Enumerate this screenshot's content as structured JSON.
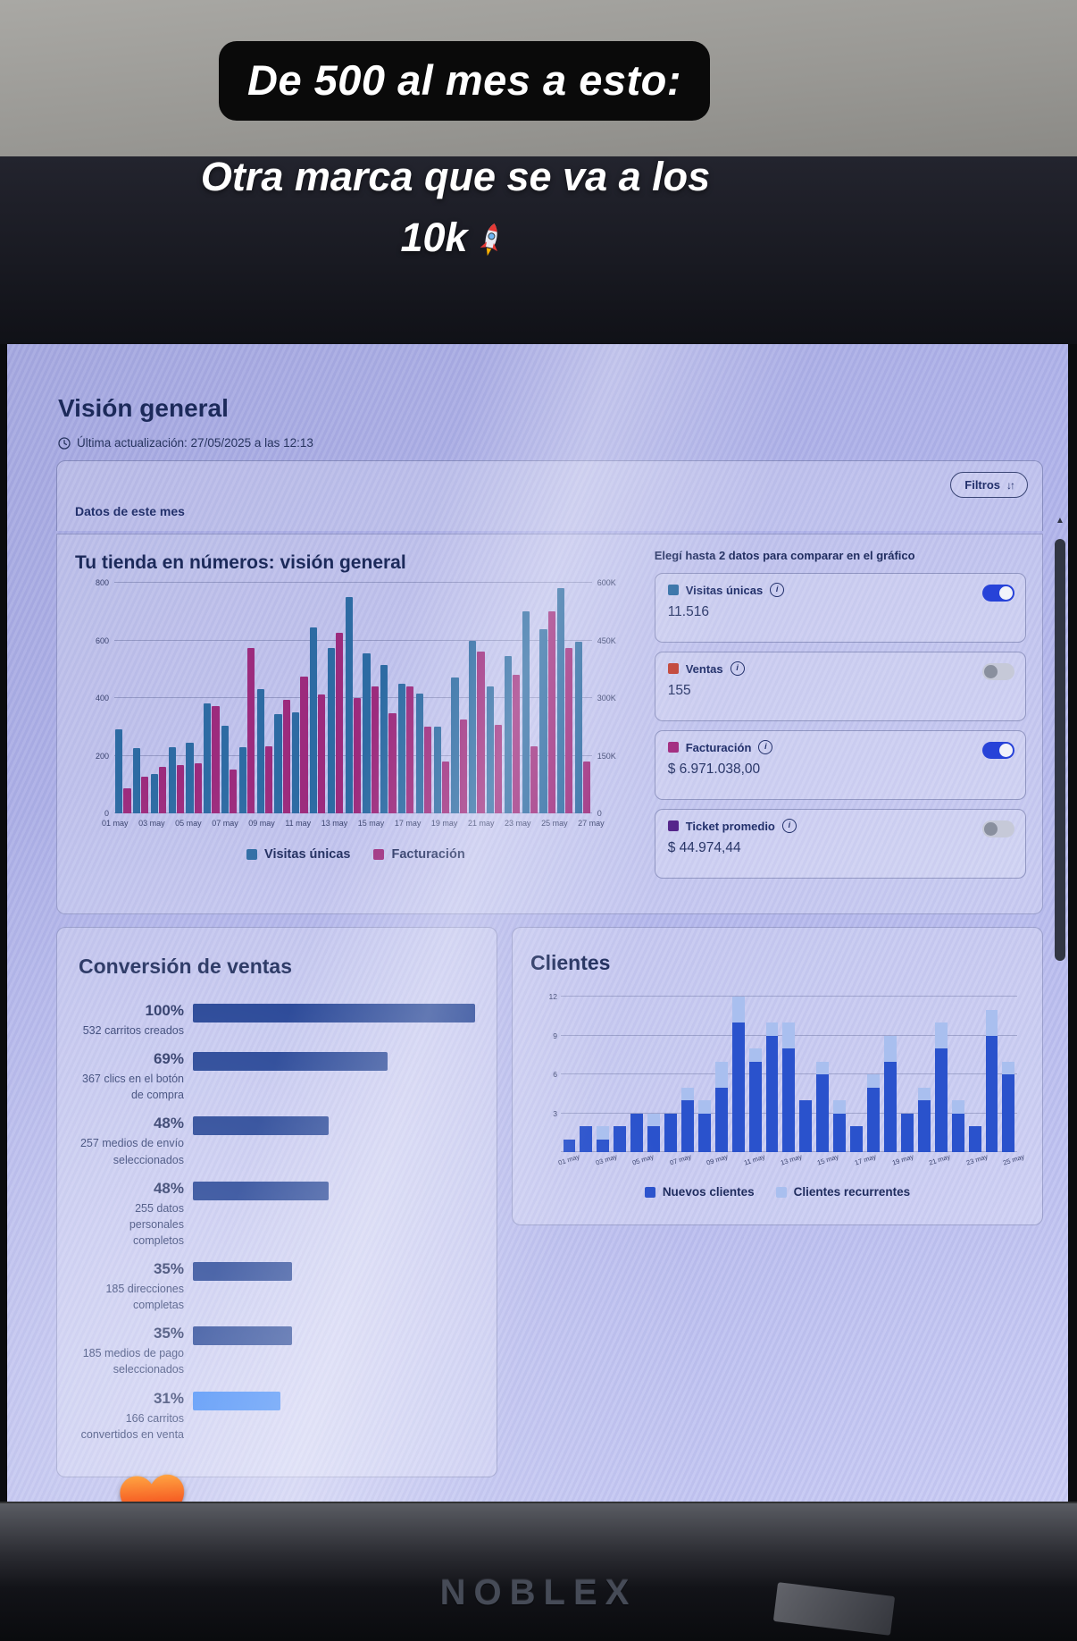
{
  "overlay": {
    "pill_text": "De 500 al mes a esto:",
    "caption_line1": "Otra marca que se va a los",
    "caption_line2": "10k"
  },
  "monitor": {
    "brand": "NOBLEX"
  },
  "icons": {
    "filter_sort": "↓↑",
    "scroll_up": "▲"
  },
  "dashboard": {
    "title": "Visión general",
    "last_update": "Última actualización: 27/05/2025 a las 12:13",
    "period_label": "Datos de este mes",
    "filters_label": "Filtros",
    "compare_hint": "Elegí hasta 2 datos para comparar en el gráfico",
    "metrics": [
      {
        "label": "Visitas únicas",
        "value": "11.516",
        "color": "#2d6ba3",
        "enabled": true
      },
      {
        "label": "Ventas",
        "value": "155",
        "color": "#c04135",
        "enabled": false
      },
      {
        "label": "Facturación",
        "value": "$ 6.971.038,00",
        "color": "#a1297e",
        "enabled": true
      },
      {
        "label": "Ticket promedio",
        "value": "$ 44.974,44",
        "color": "#55258a",
        "enabled": false
      }
    ]
  },
  "chart_data": [
    {
      "id": "tienda",
      "type": "bar",
      "title": "Tu tienda en números: visión general",
      "days": [
        1,
        2,
        3,
        4,
        5,
        6,
        7,
        8,
        9,
        10,
        11,
        12,
        13,
        14,
        15,
        16,
        17,
        18,
        19,
        20,
        21,
        22,
        23,
        24,
        25,
        26,
        27
      ],
      "series": [
        {
          "name": "Visitas únicas",
          "color": "#2d6ba3",
          "axis": "left",
          "values": [
            290,
            225,
            135,
            230,
            245,
            380,
            305,
            230,
            430,
            345,
            350,
            645,
            575,
            750,
            555,
            515,
            450,
            415,
            300,
            470,
            600,
            440,
            545,
            700,
            640,
            780,
            595
          ]
        },
        {
          "name": "Facturación",
          "color": "#9c2b7d",
          "axis": "right",
          "values_unit": "K",
          "values": [
            65,
            95,
            120,
            125,
            130,
            280,
            115,
            430,
            175,
            295,
            355,
            310,
            470,
            300,
            330,
            260,
            330,
            225,
            135,
            245,
            420,
            230,
            360,
            175,
            525,
            430,
            135
          ]
        }
      ],
      "left_axis": {
        "ticks": [
          "0",
          "200",
          "400",
          "600",
          "800"
        ],
        "max": 800
      },
      "right_axis": {
        "ticks": [
          "0",
          "150K",
          "300K",
          "450K",
          "600K"
        ],
        "max": 600
      },
      "x_tick_labels": [
        "01 may",
        "03 may",
        "05 may",
        "07 may",
        "09 may",
        "11 may",
        "13 may",
        "15 may",
        "17 may",
        "19 may",
        "21 may",
        "23 may",
        "25 may",
        "27 may"
      ],
      "legend": [
        "Visitas únicas",
        "Facturación"
      ],
      "grid": true,
      "legend_position": "bottom"
    },
    {
      "id": "conversion",
      "type": "bar",
      "title": "Conversión de ventas",
      "orientation": "horizontal-funnel",
      "steps": [
        {
          "pct": "100%",
          "value": 100,
          "label": "532 carritos creados",
          "color": "#17388f"
        },
        {
          "pct": "69%",
          "value": 69,
          "label": "367 clics en el botón de compra",
          "color": "#17388f"
        },
        {
          "pct": "48%",
          "value": 48,
          "label": "257 medios de envío seleccionados",
          "color": "#17388f"
        },
        {
          "pct": "48%",
          "value": 48,
          "label": "255 datos personales completos",
          "color": "#17388f"
        },
        {
          "pct": "35%",
          "value": 35,
          "label": "185 direcciones completas",
          "color": "#17388f"
        },
        {
          "pct": "35%",
          "value": 35,
          "label": "185 medios de pago seleccionados",
          "color": "#17388f"
        },
        {
          "pct": "31%",
          "value": 31,
          "label": "166 carritos convertidos en venta",
          "color": "#2f7df6"
        }
      ]
    },
    {
      "id": "clientes",
      "type": "bar",
      "subtype": "stacked",
      "title": "Clientes",
      "days": [
        1,
        2,
        3,
        4,
        5,
        6,
        7,
        8,
        9,
        10,
        11,
        12,
        13,
        14,
        15,
        16,
        17,
        18,
        19,
        20,
        21,
        22,
        23,
        24,
        25,
        26,
        27
      ],
      "series": [
        {
          "name": "Nuevos clientes",
          "color": "#2a52cc",
          "values": [
            1,
            2,
            1,
            2,
            3,
            2,
            3,
            4,
            3,
            5,
            10,
            7,
            9,
            8,
            4,
            6,
            3,
            2,
            5,
            7,
            3,
            4,
            8,
            3,
            2,
            9,
            6
          ]
        },
        {
          "name": "Clientes recurrentes",
          "color": "#a9bfef",
          "values": [
            0,
            0,
            1,
            0,
            0,
            1,
            0,
            1,
            1,
            2,
            2,
            1,
            1,
            2,
            0,
            1,
            1,
            0,
            1,
            2,
            0,
            1,
            2,
            1,
            0,
            2,
            1
          ]
        }
      ],
      "y_axis": {
        "ticks": [
          "3",
          "6",
          "9",
          "12"
        ],
        "max": 13
      },
      "x_tick_labels": [
        "01 may",
        "03 may",
        "05 may",
        "07 may",
        "09 may",
        "11 may",
        "13 may",
        "15 may",
        "17 may",
        "19 may",
        "21 may",
        "23 may",
        "25 may"
      ],
      "legend": [
        "Nuevos clientes",
        "Clientes recurrentes"
      ],
      "grid": true,
      "legend_position": "bottom"
    }
  ]
}
